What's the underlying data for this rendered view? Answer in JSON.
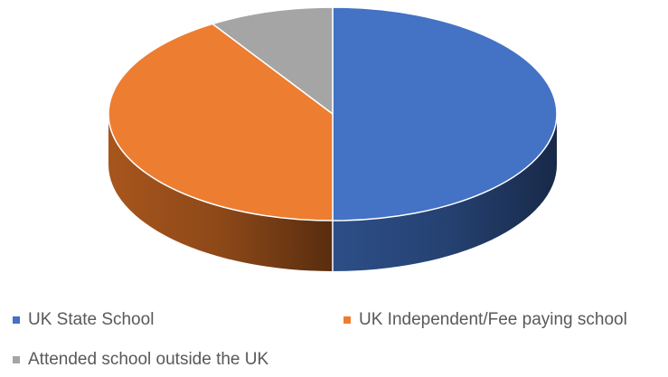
{
  "chart_data": {
    "type": "pie",
    "style": "3d",
    "title": "",
    "categories": [
      "UK State School",
      "UK Independent/Fee paying school",
      "Attended school outside the UK"
    ],
    "values": [
      50,
      41,
      9
    ],
    "unit": "%",
    "colors": [
      "#4472C4",
      "#ED7D31",
      "#A5A5A5"
    ],
    "side_colors": [
      "#2F528F",
      "#B05A1E",
      "#7B7B7B"
    ],
    "start_angle_deg": 0,
    "direction": "clockwise",
    "legend_position": "bottom",
    "data_labels": false
  }
}
